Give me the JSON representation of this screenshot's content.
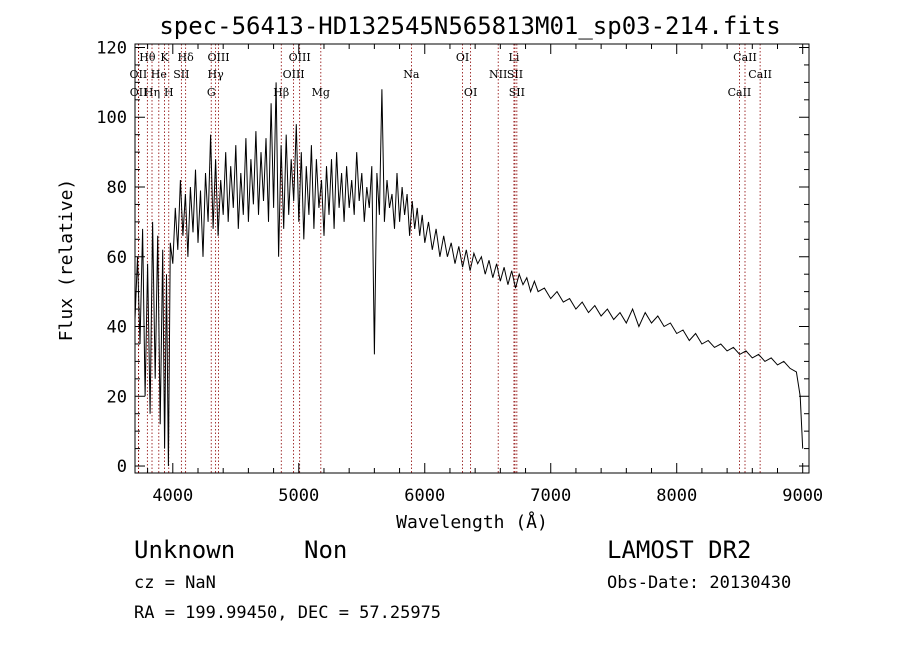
{
  "chart_data": {
    "type": "line",
    "title": "spec-56413-HD132545N565813M01_sp03-214.fits",
    "xlabel": "Wavelength (Å)",
    "ylabel": "Flux (relative)",
    "xlim": [
      3700,
      9050
    ],
    "ylim": [
      -2,
      121
    ],
    "xticks": [
      4000,
      5000,
      6000,
      7000,
      8000,
      9000
    ],
    "yticks": [
      0,
      20,
      40,
      60,
      80,
      100,
      120
    ],
    "grid": false,
    "line_color": "#000000",
    "marker_color": "#8b0000",
    "series": [
      {
        "points": [
          [
            3700,
            42
          ],
          [
            3720,
            60
          ],
          [
            3740,
            35
          ],
          [
            3760,
            68
          ],
          [
            3780,
            20
          ],
          [
            3800,
            58
          ],
          [
            3820,
            15
          ],
          [
            3840,
            70
          ],
          [
            3860,
            25
          ],
          [
            3880,
            66
          ],
          [
            3900,
            12
          ],
          [
            3920,
            62
          ],
          [
            3935,
            5
          ],
          [
            3950,
            55
          ],
          [
            3965,
            0
          ],
          [
            3980,
            64
          ],
          [
            4000,
            58
          ],
          [
            4020,
            74
          ],
          [
            4040,
            62
          ],
          [
            4060,
            82
          ],
          [
            4080,
            66
          ],
          [
            4100,
            78
          ],
          [
            4120,
            60
          ],
          [
            4140,
            80
          ],
          [
            4160,
            67
          ],
          [
            4180,
            85
          ],
          [
            4200,
            64
          ],
          [
            4220,
            79
          ],
          [
            4240,
            60
          ],
          [
            4260,
            84
          ],
          [
            4280,
            70
          ],
          [
            4300,
            95
          ],
          [
            4320,
            68
          ],
          [
            4340,
            88
          ],
          [
            4360,
            66
          ],
          [
            4380,
            82
          ],
          [
            4400,
            72
          ],
          [
            4420,
            90
          ],
          [
            4440,
            70
          ],
          [
            4460,
            86
          ],
          [
            4480,
            74
          ],
          [
            4500,
            92
          ],
          [
            4520,
            68
          ],
          [
            4540,
            84
          ],
          [
            4560,
            72
          ],
          [
            4580,
            94
          ],
          [
            4600,
            70
          ],
          [
            4620,
            88
          ],
          [
            4640,
            75
          ],
          [
            4660,
            96
          ],
          [
            4680,
            72
          ],
          [
            4700,
            90
          ],
          [
            4720,
            76
          ],
          [
            4740,
            94
          ],
          [
            4760,
            70
          ],
          [
            4780,
            104
          ],
          [
            4800,
            74
          ],
          [
            4820,
            110
          ],
          [
            4840,
            60
          ],
          [
            4860,
            92
          ],
          [
            4880,
            68
          ],
          [
            4900,
            95
          ],
          [
            4920,
            72
          ],
          [
            4940,
            88
          ],
          [
            4960,
            76
          ],
          [
            4980,
            98
          ],
          [
            5000,
            70
          ],
          [
            5020,
            90
          ],
          [
            5040,
            65
          ],
          [
            5060,
            86
          ],
          [
            5080,
            72
          ],
          [
            5100,
            92
          ],
          [
            5120,
            68
          ],
          [
            5140,
            88
          ],
          [
            5160,
            74
          ],
          [
            5180,
            82
          ],
          [
            5200,
            66
          ],
          [
            5220,
            86
          ],
          [
            5240,
            72
          ],
          [
            5260,
            88
          ],
          [
            5280,
            68
          ],
          [
            5300,
            90
          ],
          [
            5320,
            74
          ],
          [
            5340,
            84
          ],
          [
            5360,
            70
          ],
          [
            5380,
            86
          ],
          [
            5400,
            74
          ],
          [
            5420,
            82
          ],
          [
            5440,
            72
          ],
          [
            5460,
            90
          ],
          [
            5480,
            76
          ],
          [
            5500,
            84
          ],
          [
            5520,
            70
          ],
          [
            5540,
            80
          ],
          [
            5560,
            74
          ],
          [
            5580,
            86
          ],
          [
            5600,
            32
          ],
          [
            5620,
            84
          ],
          [
            5640,
            72
          ],
          [
            5660,
            108
          ],
          [
            5680,
            70
          ],
          [
            5700,
            82
          ],
          [
            5720,
            74
          ],
          [
            5740,
            78
          ],
          [
            5760,
            68
          ],
          [
            5780,
            84
          ],
          [
            5800,
            70
          ],
          [
            5820,
            80
          ],
          [
            5840,
            72
          ],
          [
            5860,
            78
          ],
          [
            5880,
            66
          ],
          [
            5900,
            76
          ],
          [
            5920,
            68
          ],
          [
            5940,
            74
          ],
          [
            5960,
            66
          ],
          [
            5980,
            72
          ],
          [
            6000,
            64
          ],
          [
            6030,
            70
          ],
          [
            6060,
            62
          ],
          [
            6090,
            68
          ],
          [
            6120,
            60
          ],
          [
            6150,
            66
          ],
          [
            6180,
            60
          ],
          [
            6210,
            64
          ],
          [
            6240,
            58
          ],
          [
            6270,
            63
          ],
          [
            6300,
            57
          ],
          [
            6330,
            62
          ],
          [
            6360,
            56
          ],
          [
            6390,
            61
          ],
          [
            6420,
            58
          ],
          [
            6450,
            60
          ],
          [
            6480,
            55
          ],
          [
            6510,
            59
          ],
          [
            6540,
            54
          ],
          [
            6570,
            58
          ],
          [
            6600,
            53
          ],
          [
            6630,
            57
          ],
          [
            6660,
            52
          ],
          [
            6690,
            56
          ],
          [
            6720,
            51
          ],
          [
            6750,
            55
          ],
          [
            6780,
            52
          ],
          [
            6810,
            54
          ],
          [
            6840,
            50
          ],
          [
            6870,
            53
          ],
          [
            6900,
            50
          ],
          [
            6950,
            51
          ],
          [
            7000,
            48
          ],
          [
            7050,
            50
          ],
          [
            7100,
            47
          ],
          [
            7150,
            48
          ],
          [
            7200,
            45
          ],
          [
            7250,
            47
          ],
          [
            7300,
            44
          ],
          [
            7350,
            46
          ],
          [
            7400,
            43
          ],
          [
            7450,
            45
          ],
          [
            7500,
            42
          ],
          [
            7550,
            44
          ],
          [
            7600,
            41
          ],
          [
            7650,
            45
          ],
          [
            7700,
            40
          ],
          [
            7750,
            44
          ],
          [
            7800,
            41
          ],
          [
            7850,
            43
          ],
          [
            7900,
            40
          ],
          [
            7950,
            41
          ],
          [
            8000,
            38
          ],
          [
            8050,
            39
          ],
          [
            8100,
            36
          ],
          [
            8150,
            38
          ],
          [
            8200,
            35
          ],
          [
            8250,
            36
          ],
          [
            8300,
            34
          ],
          [
            8350,
            35
          ],
          [
            8400,
            33
          ],
          [
            8450,
            34
          ],
          [
            8500,
            32
          ],
          [
            8550,
            33
          ],
          [
            8600,
            31
          ],
          [
            8650,
            32
          ],
          [
            8700,
            30
          ],
          [
            8750,
            31
          ],
          [
            8800,
            29
          ],
          [
            8850,
            30
          ],
          [
            8900,
            28
          ],
          [
            8950,
            27
          ],
          [
            8980,
            20
          ],
          [
            9000,
            5
          ]
        ]
      }
    ],
    "lines": [
      {
        "label": "Hθ",
        "x": 3798,
        "row": 0
      },
      {
        "label": "OII",
        "x": 3727,
        "row": 1
      },
      {
        "label": "OII",
        "x": 3729,
        "row": 2
      },
      {
        "label": "He",
        "x": 3889,
        "row": 1
      },
      {
        "label": "Hη",
        "x": 3835,
        "row": 2
      },
      {
        "label": "K",
        "x": 3934,
        "row": 0
      },
      {
        "label": "H",
        "x": 3968,
        "row": 2
      },
      {
        "label": "SII",
        "x": 4068,
        "row": 1
      },
      {
        "label": "Hδ",
        "x": 4102,
        "row": 0
      },
      {
        "label": "OIII",
        "x": 4363,
        "row": 0
      },
      {
        "label": "Hγ",
        "x": 4340,
        "row": 1
      },
      {
        "label": "G",
        "x": 4305,
        "row": 2
      },
      {
        "label": "Hβ",
        "x": 4861,
        "row": 2
      },
      {
        "label": "OIII",
        "x": 5007,
        "row": 0
      },
      {
        "label": "OIII",
        "x": 4959,
        "row": 1
      },
      {
        "label": "Mg",
        "x": 5175,
        "row": 2
      },
      {
        "label": "Na",
        "x": 5894,
        "row": 1
      },
      {
        "label": "OI",
        "x": 6300,
        "row": 0
      },
      {
        "label": "OI",
        "x": 6364,
        "row": 2
      },
      {
        "label": "NII",
        "x": 6583,
        "row": 1
      },
      {
        "label": "Li",
        "x": 6708,
        "row": 0
      },
      {
        "label": "SII",
        "x": 6716,
        "row": 1
      },
      {
        "label": "SII",
        "x": 6731,
        "row": 2
      },
      {
        "label": "CaII",
        "x": 8542,
        "row": 0
      },
      {
        "label": "CaII",
        "x": 8662,
        "row": 1
      },
      {
        "label": "CaII",
        "x": 8498,
        "row": 2
      }
    ]
  },
  "info": {
    "obj_class": "Unknown",
    "obj_subclass": "Non",
    "survey": "LAMOST DR2",
    "cz": "cz = NaN",
    "obs_date": "Obs-Date: 20130430",
    "radec": "RA = 199.99450, DEC =  57.25975"
  }
}
